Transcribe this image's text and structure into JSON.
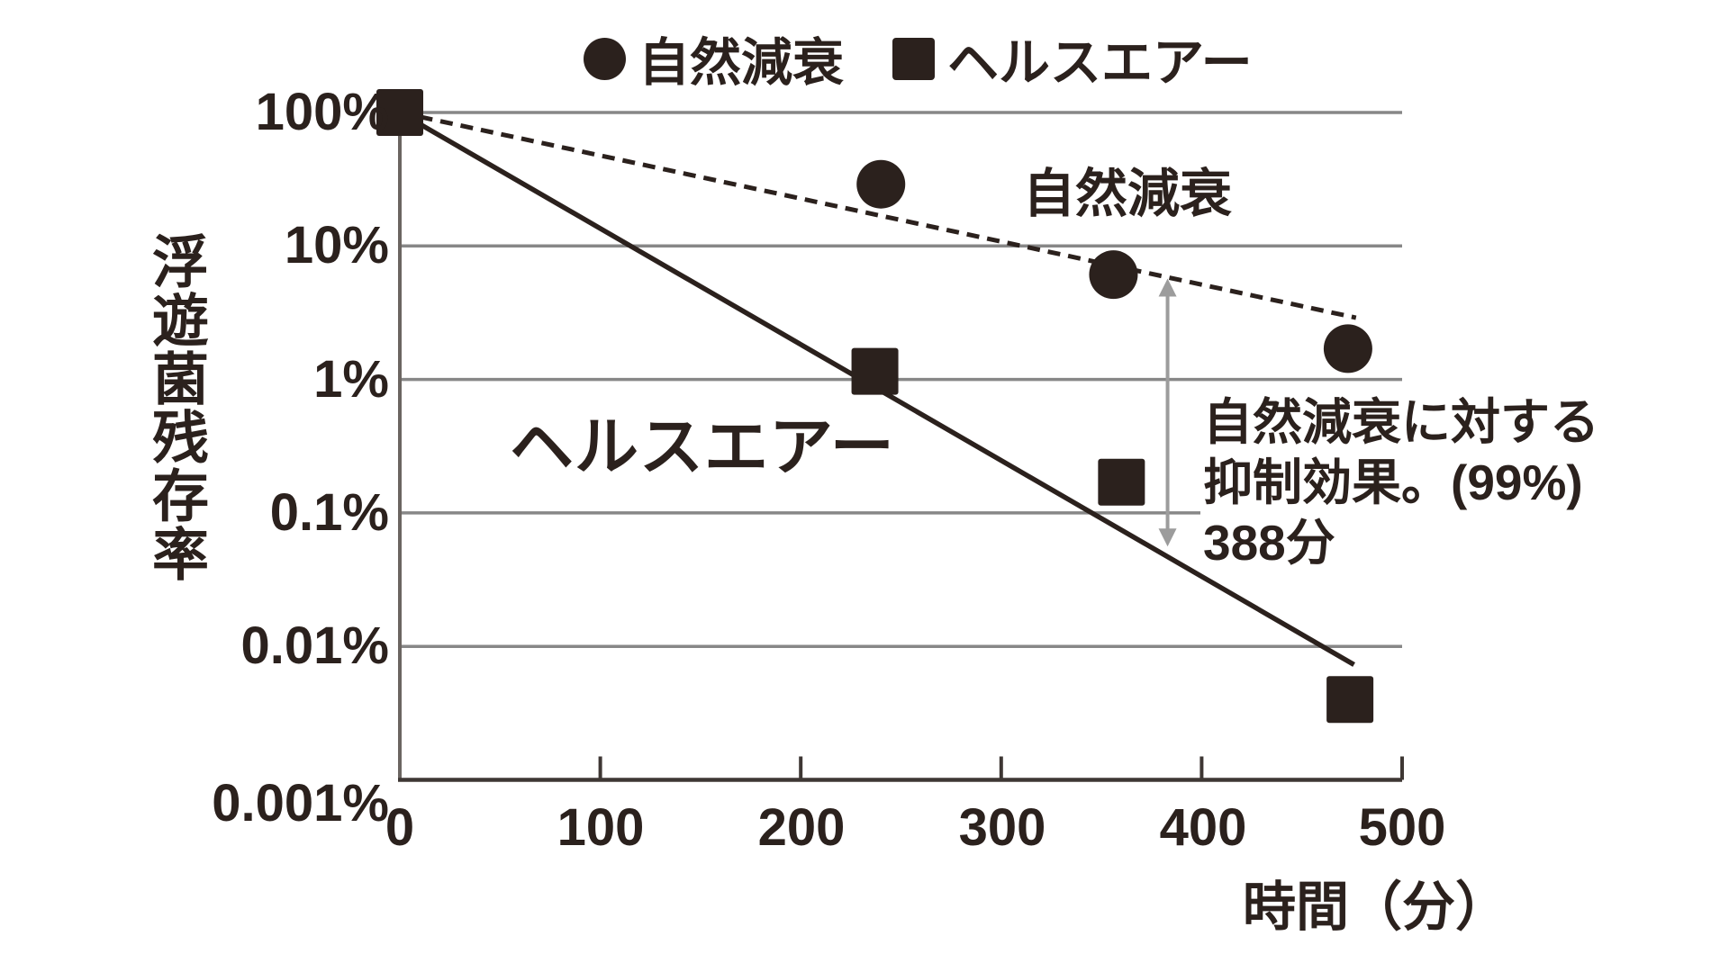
{
  "page": {
    "background": "#ffffff",
    "ink": "#2b211d",
    "grid_color": "#878787",
    "axis_color": "#6b6561",
    "baseline_color": "#3e3734",
    "arrow_color": "#9c9c9c"
  },
  "legend": {
    "items": [
      {
        "marker": "circle",
        "label": "自然減衰"
      },
      {
        "marker": "square",
        "label": "ヘルスエアー"
      }
    ]
  },
  "axes": {
    "y_title": "浮遊菌残存率",
    "x_title": "時間（分）",
    "y_ticks": [
      "100%",
      "10%",
      "1%",
      "0.1%",
      "0.01%",
      "0.001%"
    ],
    "x_ticks": [
      "0",
      "100",
      "200",
      "300",
      "400",
      "500"
    ]
  },
  "inplot_labels": {
    "natural_decay": "自然減衰",
    "health_air": "ヘルスエアー"
  },
  "annotation": {
    "lines": [
      "自然減衰に対する",
      "抑制効果。(99%)",
      "388分"
    ]
  },
  "chart_data": {
    "type": "scatter",
    "title": "",
    "xlabel": "時間（分）",
    "ylabel": "浮遊菌残存率",
    "x_axis_unit": "minutes",
    "x_range": [
      0,
      500
    ],
    "x_tick_values": [
      0,
      100,
      200,
      300,
      400,
      500
    ],
    "y_scale": "log",
    "y_range_percent": [
      0.001,
      100
    ],
    "y_tick_percents": [
      100,
      10,
      1,
      0.1,
      0.01,
      0.001
    ],
    "grid": "horizontal decade gridlines",
    "legend_position": "top-center",
    "series": [
      {
        "name": "自然減衰",
        "marker": "circle",
        "line_style": "dashed",
        "points": [
          [
            240,
            29
          ],
          [
            356,
            6.1
          ],
          [
            473,
            1.7
          ]
        ],
        "trend_line": [
          [
            0,
            100
          ],
          [
            477,
            2.9
          ]
        ]
      },
      {
        "name": "ヘルスエアー",
        "marker": "square",
        "line_style": "solid",
        "points": [
          [
            0,
            100
          ],
          [
            237,
            1.15
          ],
          [
            360,
            0.17
          ],
          [
            474,
            0.004
          ]
        ],
        "trend_line": [
          [
            0,
            100
          ],
          [
            476,
            0.0073
          ]
        ]
      }
    ],
    "gap_arrow": {
      "x_min": 383,
      "from_percent": 5.7,
      "to_percent": 0.056,
      "meaning": "suppression effect vs natural decay: 99% at 388 min"
    }
  }
}
